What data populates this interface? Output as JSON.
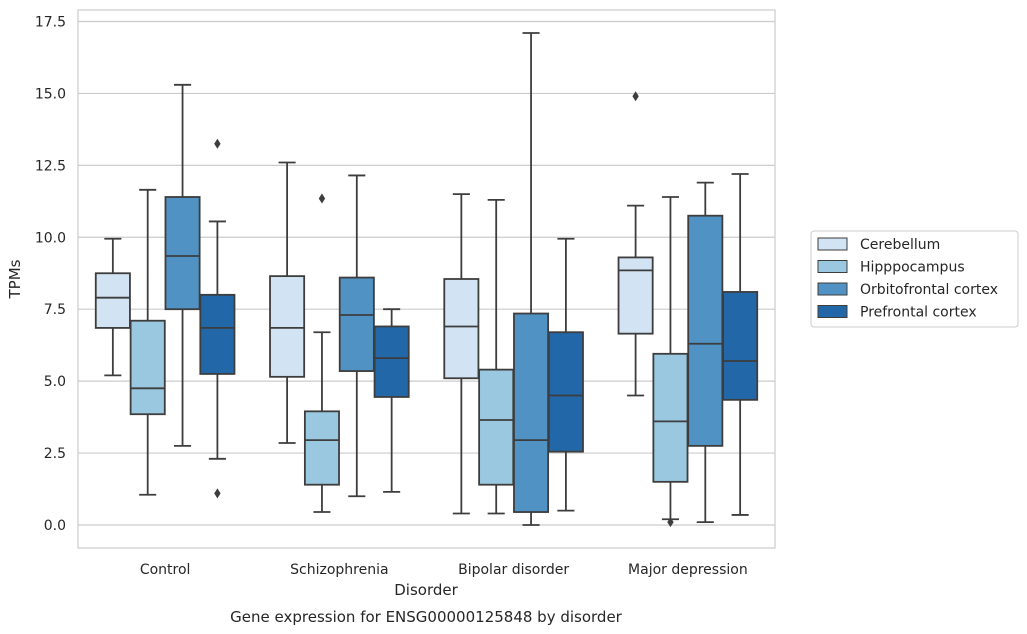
{
  "chart_data": {
    "type": "box",
    "title": "Gene expression for ENSG00000125848 by disorder",
    "xlabel": "Disorder",
    "ylabel": "TPMs",
    "ylim": [
      -0.8,
      17.9
    ],
    "yticks": [
      0.0,
      2.5,
      5.0,
      7.5,
      10.0,
      12.5,
      15.0,
      17.5
    ],
    "ytick_labels": [
      "0.0",
      "2.5",
      "5.0",
      "7.5",
      "10.0",
      "12.5",
      "15.0",
      "17.5"
    ],
    "categories": [
      "Control",
      "Schizophrenia",
      "Bipolar disorder",
      "Major depression"
    ],
    "grid": "horizontal",
    "legend_position": "right",
    "series": [
      {
        "name": "Cerebellum",
        "color": "#d2e3f3",
        "boxes": [
          {
            "whislo": 5.2,
            "q1": 6.85,
            "med": 7.9,
            "q3": 8.75,
            "whishi": 9.95,
            "fliers": []
          },
          {
            "whislo": 2.85,
            "q1": 5.15,
            "med": 6.85,
            "q3": 8.65,
            "whishi": 12.6,
            "fliers": []
          },
          {
            "whislo": 0.4,
            "q1": 5.1,
            "med": 6.9,
            "q3": 8.55,
            "whishi": 11.5,
            "fliers": []
          },
          {
            "whislo": 4.5,
            "q1": 6.65,
            "med": 8.85,
            "q3": 9.3,
            "whishi": 11.1,
            "fliers": [
              14.9
            ]
          }
        ]
      },
      {
        "name": "Hipppocampus",
        "color": "#9ac8e0",
        "boxes": [
          {
            "whislo": 1.05,
            "q1": 3.85,
            "med": 4.75,
            "q3": 7.1,
            "whishi": 11.65,
            "fliers": []
          },
          {
            "whislo": 0.45,
            "q1": 1.4,
            "med": 2.95,
            "q3": 3.95,
            "whishi": 6.7,
            "fliers": [
              11.35
            ]
          },
          {
            "whislo": 0.4,
            "q1": 1.4,
            "med": 3.65,
            "q3": 5.4,
            "whishi": 11.3,
            "fliers": []
          },
          {
            "whislo": 0.2,
            "q1": 1.5,
            "med": 3.6,
            "q3": 5.95,
            "whishi": 11.4,
            "fliers": [
              0.1
            ]
          }
        ]
      },
      {
        "name": "Orbitofrontal cortex",
        "color": "#4f92c3",
        "boxes": [
          {
            "whislo": 2.75,
            "q1": 7.5,
            "med": 9.35,
            "q3": 11.4,
            "whishi": 15.3,
            "fliers": []
          },
          {
            "whislo": 1.0,
            "q1": 5.35,
            "med": 7.3,
            "q3": 8.6,
            "whishi": 12.15,
            "fliers": []
          },
          {
            "whislo": 0.0,
            "q1": 0.45,
            "med": 2.95,
            "q3": 7.35,
            "whishi": 17.1,
            "fliers": []
          },
          {
            "whislo": 0.1,
            "q1": 2.75,
            "med": 6.3,
            "q3": 10.75,
            "whishi": 11.9,
            "fliers": []
          }
        ]
      },
      {
        "name": "Prefrontal cortex",
        "color": "#2268a9",
        "boxes": [
          {
            "whislo": 2.3,
            "q1": 5.25,
            "med": 6.85,
            "q3": 8.0,
            "whishi": 10.55,
            "fliers": [
              13.25,
              1.1
            ]
          },
          {
            "whislo": 1.15,
            "q1": 4.45,
            "med": 5.8,
            "q3": 6.9,
            "whishi": 7.5,
            "fliers": []
          },
          {
            "whislo": 0.5,
            "q1": 2.55,
            "med": 4.5,
            "q3": 6.7,
            "whishi": 9.95,
            "fliers": []
          },
          {
            "whislo": 0.35,
            "q1": 4.35,
            "med": 5.7,
            "q3": 8.1,
            "whishi": 12.2,
            "fliers": []
          }
        ]
      }
    ]
  }
}
